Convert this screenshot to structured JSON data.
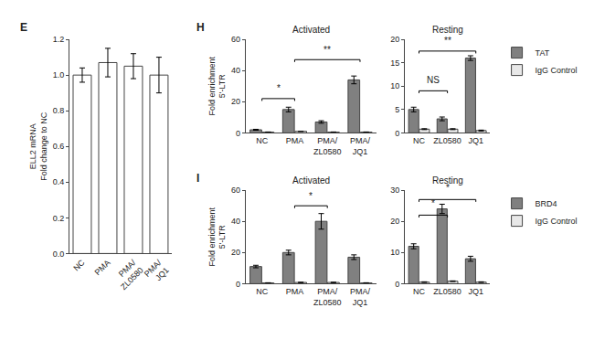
{
  "chart_data": [
    {
      "type": "bar",
      "ylabel": "ELL2 mRNA\nFold change to NC",
      "categories": [
        "NC",
        "PMA",
        "PMA/\nZL0580",
        "PMA/\nJQ1"
      ],
      "values": [
        1.0,
        1.07,
        1.05,
        1.0
      ],
      "errors": [
        0.04,
        0.08,
        0.07,
        0.1
      ],
      "color": "#ffffff",
      "ylim": [
        0,
        1.2
      ],
      "yticks": [
        {
          "value": 0,
          "label": "0.0"
        },
        0.2,
        0.4,
        0.6,
        0.8,
        {
          "value": 1,
          "label": "1.0"
        },
        1.2
      ],
      "grid": false,
      "annotations": [
        {
          "text": "E"
        }
      ]
    },
    {
      "type": "bar",
      "title": "Activated",
      "ylabel": "Fold enrichment\n5'-LTR",
      "categories": [
        "NC",
        "PMA",
        "PMA/\nZL0580",
        "PMA/\nJQ1"
      ],
      "series": [
        {
          "name": "TAT",
          "color": "#808080",
          "values": [
            2.0,
            15.0,
            7.0,
            34.0
          ],
          "errors": [
            0.3,
            1.5,
            0.8,
            2.5
          ]
        },
        {
          "name": "IgG Control",
          "color": "#e8e8e8",
          "values": [
            0.5,
            1.0,
            0.5,
            0.5
          ],
          "errors": [
            0.1,
            0.1,
            0.1,
            0.1
          ]
        }
      ],
      "ylim": [
        0,
        60
      ],
      "yticks": [
        0,
        20,
        40,
        60
      ],
      "grid": false,
      "annotations": [
        {
          "text": "H"
        },
        {
          "text": "**",
          "x1": "PMA",
          "x2": "PMA/\nJQ1",
          "y": 47,
          "text_y": 49
        },
        {
          "text": "*",
          "x1": "NC",
          "x2": "PMA",
          "y": 22,
          "text_y": 24
        }
      ]
    },
    {
      "type": "bar",
      "title": "Resting",
      "categories": [
        "NC",
        "ZL0580",
        "JQ1"
      ],
      "series": [
        {
          "name": "TAT",
          "color": "#808080",
          "values": [
            5.0,
            3.0,
            16.0
          ],
          "errors": [
            0.5,
            0.4,
            0.5
          ]
        },
        {
          "name": "IgG Control",
          "color": "#e8e8e8",
          "values": [
            0.8,
            0.8,
            0.5
          ],
          "errors": [
            0.1,
            0.1,
            0.1
          ]
        }
      ],
      "ylim": [
        0,
        20
      ],
      "yticks": [
        0,
        5,
        10,
        15,
        20
      ],
      "grid": false,
      "legend": "right",
      "annotations": [
        {
          "text": "**",
          "x1": "NC",
          "x2": "JQ1",
          "y": 17.5,
          "text_y": 18.2
        },
        {
          "text": "NS",
          "x1": "NC",
          "x2": "ZL0580",
          "y": 9,
          "text_y": 9.8
        }
      ]
    },
    {
      "type": "bar",
      "title": "Activated",
      "ylabel": "Fold enrichment\n5'-LTR",
      "categories": [
        "NC",
        "PMA",
        "PMA/\nZL0580",
        "PMA/\nJQ1"
      ],
      "series": [
        {
          "name": "BRD4",
          "color": "#808080",
          "values": [
            11.0,
            20.0,
            40.0,
            17.0
          ],
          "errors": [
            0.8,
            1.5,
            5.0,
            1.5
          ]
        },
        {
          "name": "IgG Control",
          "color": "#e8e8e8",
          "values": [
            0.5,
            0.8,
            0.8,
            0.5
          ],
          "errors": [
            0.1,
            0.1,
            0.1,
            0.1
          ]
        }
      ],
      "ylim": [
        0,
        60
      ],
      "yticks": [
        0,
        20,
        40,
        60
      ],
      "grid": false,
      "annotations": [
        {
          "text": "I"
        },
        {
          "text": "*",
          "x1": "PMA",
          "x2": "PMA/\nZL0580",
          "y": 50,
          "text_y": 52
        }
      ]
    },
    {
      "type": "bar",
      "title": "Resting",
      "categories": [
        "NC",
        "ZL0580",
        "JQ1"
      ],
      "series": [
        {
          "name": "BRD4",
          "color": "#808080",
          "values": [
            12.0,
            24.0,
            8.0
          ],
          "errors": [
            0.8,
            1.5,
            0.8
          ]
        },
        {
          "name": "IgG Control",
          "color": "#e8e8e8",
          "values": [
            0.5,
            0.8,
            0.5
          ],
          "errors": [
            0.1,
            0.1,
            0.1
          ]
        }
      ],
      "ylim": [
        0,
        30
      ],
      "yticks": [
        0,
        10,
        20,
        30
      ],
      "grid": false,
      "legend": "right",
      "annotations": [
        {
          "text": "*",
          "x1": "NC",
          "x2": "JQ1",
          "y": 27,
          "text_y": 28.5
        },
        {
          "text": "*",
          "x1": "NC",
          "x2": "ZL0580",
          "y": 22,
          "text_y": 23.5
        }
      ]
    }
  ]
}
